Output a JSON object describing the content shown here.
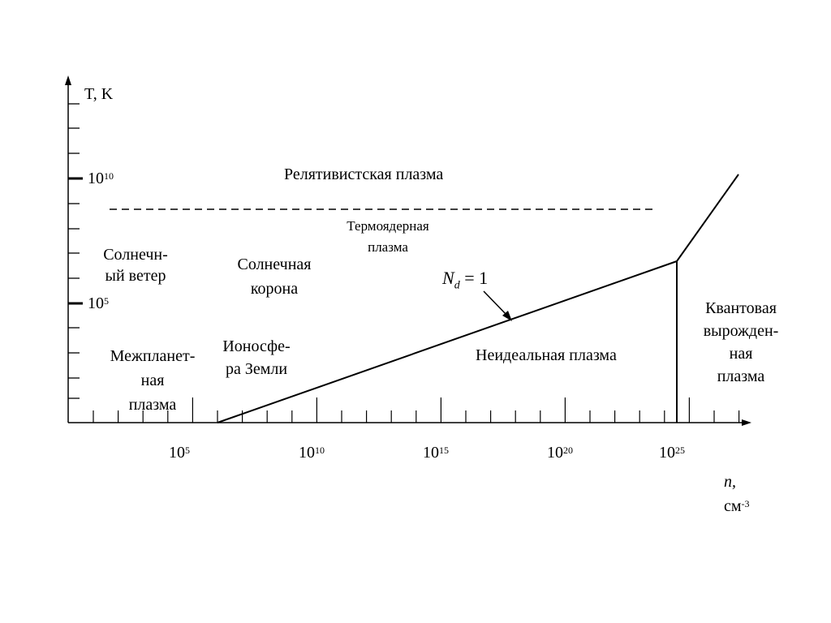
{
  "axes": {
    "y_label": "T, K",
    "y_ticks": [
      {
        "base": "10",
        "exp": "10"
      },
      {
        "base": "10",
        "exp": "5"
      }
    ],
    "x_ticks": [
      {
        "base": "10",
        "exp": "5"
      },
      {
        "base": "10",
        "exp": "10"
      },
      {
        "base": "10",
        "exp": "15"
      },
      {
        "base": "10",
        "exp": "20"
      },
      {
        "base": "10",
        "exp": "25"
      }
    ],
    "x_label_var": "n,",
    "x_label_unit_base": "см",
    "x_label_unit_exp": "-3"
  },
  "regions": {
    "relativistic": "Релятивистская  плазма",
    "thermonuclear_l1": "Термоядерная",
    "thermonuclear_l2": "плазма",
    "solar_wind_l1": "Солнечн-",
    "solar_wind_l2": "ый ветер",
    "solar_corona_l1": "Солнечная",
    "solar_corona_l2": "корона",
    "interplanetary_l1": "Межпланет-",
    "interplanetary_l2": "ная",
    "interplanetary_l3": "плазма",
    "ionosphere_l1": "Ионосфе-",
    "ionosphere_l2": "ра Земли",
    "nonideal": "Неидеальная плазма",
    "quantum_l1": "Квантовая",
    "quantum_l2": "вырожден-",
    "quantum_l3": "ная",
    "quantum_l4": "плазма"
  },
  "nd_label": {
    "var": "N",
    "sub": "d",
    "rest": " = 1"
  }
}
